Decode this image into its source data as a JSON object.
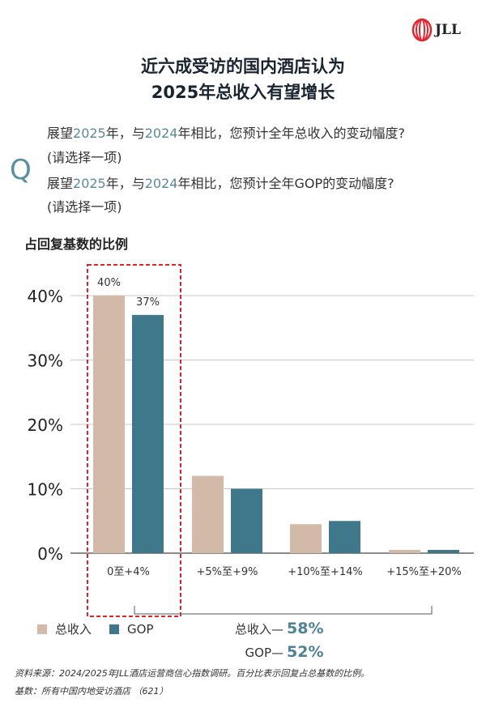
{
  "brand": {
    "logo_text": "JLL",
    "logo_color": "#e3262f"
  },
  "title": [
    "近六成受访的国内酒店认为",
    "2025年总收入有望增长"
  ],
  "question": {
    "mark": "Q",
    "q1": {
      "a": "展望",
      "y1": "2025",
      "b": "年，与",
      "y2": "2024",
      "c": "年相比，您预计全年总收入的变动幅度?"
    },
    "q1_note": "(请选择一项)",
    "q2": {
      "a": "展望",
      "y1": "2025",
      "b": "年，与",
      "y2": "2024",
      "c": "年相比，您预计全年GOP的变动幅度?"
    },
    "q2_note": "(请选择一项)"
  },
  "chart_data": {
    "type": "bar",
    "ylabel": "占回复基数的比例",
    "categories": [
      "0至+4%",
      "+5%至+9%",
      "+10%至+14%",
      "+15%至+20%"
    ],
    "series": [
      {
        "name": "总收入",
        "color": "#d3b9a7",
        "values": [
          40,
          12,
          4.5,
          0.5
        ]
      },
      {
        "name": "GOP",
        "color": "#3f778b",
        "values": [
          37,
          10,
          5,
          0.5
        ]
      }
    ],
    "data_labels": [
      "40%",
      "37%"
    ],
    "yticks": [
      "0%",
      "10%",
      "20%",
      "30%",
      "40%"
    ],
    "ylim": [
      0,
      40
    ],
    "grid": true,
    "highlight_category": "0至+4%",
    "highlight_color": "#d9232d",
    "legend_placement": "bottom-left"
  },
  "summary": [
    {
      "label": "总收入—",
      "value": "58%"
    },
    {
      "label": "GOP—",
      "value": "52%"
    }
  ],
  "footer": [
    "资料来源：2024/2025年JLL酒店运营商信心指数调研。百分比表示回复占总基数的比例。",
    "基数：所有中国内地受访酒店 （621）"
  ]
}
